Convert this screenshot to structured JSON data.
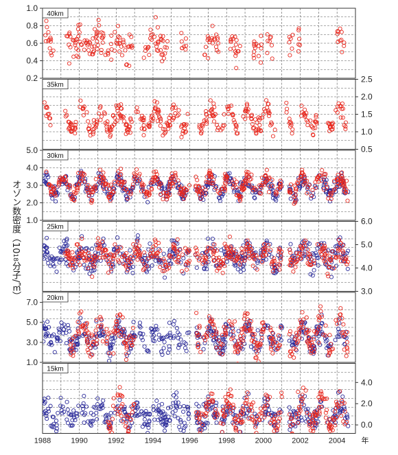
{
  "figure": {
    "ylabel_prefix": "オゾン数密度（10",
    "ylabel_exp": "18",
    "ylabel_suffix": "分子/㎥）",
    "year_unit": "年"
  },
  "chart_data": [
    {
      "type": "scatter",
      "panel_label": "40km",
      "axis_side": "left",
      "ylim": [
        0.2,
        1.0
      ],
      "yticks": [
        "0.2",
        "0.4",
        "0.6",
        "0.8",
        "1.0"
      ],
      "xlim": [
        1988,
        2005
      ],
      "xticks": [
        "1988",
        "1990",
        "1992",
        "1994",
        "1996",
        "1998",
        "2000",
        "2002",
        "2004"
      ],
      "grid": true,
      "series": [
        {
          "color": "#e8291f",
          "mean": 0.6,
          "amplitude": 0.08,
          "noise": 0.09,
          "clusters": [
            [
              1988.1,
              1988.6
            ],
            [
              1989.2,
              1991.8
            ],
            [
              1991.9,
              1992.9
            ],
            [
              1993.5,
              1994.8
            ],
            [
              1995.5,
              1995.8
            ],
            [
              1996.8,
              1997.6
            ],
            [
              1998.2,
              1998.8
            ],
            [
              1999.4,
              1999.9
            ],
            [
              2000.2,
              2000.5
            ],
            [
              2001.4,
              2001.6
            ],
            [
              2001.8,
              2002.0
            ],
            [
              2004.0,
              2004.4
            ]
          ]
        }
      ]
    },
    {
      "type": "scatter",
      "panel_label": "35km",
      "axis_side": "right",
      "ylim": [
        0.5,
        2.5
      ],
      "yticks": [
        "0.5",
        "1.0",
        "1.5",
        "2.0",
        "2.5"
      ],
      "xlim": [
        1988,
        2005
      ],
      "xticks": [
        "1988",
        "1990",
        "1992",
        "1994",
        "1996",
        "1998",
        "2000",
        "2002",
        "2004"
      ],
      "grid": true,
      "series": [
        {
          "color": "#e8291f",
          "mean": 1.35,
          "amplitude": 0.3,
          "noise": 0.12,
          "clusters": [
            [
              1988.1,
              1988.5
            ],
            [
              1989.1,
              1992.9
            ],
            [
              1993.0,
              1995.9
            ],
            [
              1996.5,
              1997.9
            ],
            [
              1998.0,
              1998.6
            ],
            [
              1998.9,
              2000.7
            ],
            [
              2001.2,
              2001.6
            ],
            [
              2002.0,
              2002.9
            ],
            [
              2003.5,
              2004.5
            ]
          ]
        }
      ]
    },
    {
      "type": "scatter",
      "panel_label": "30km",
      "axis_side": "left",
      "ylim": [
        1.0,
        5.0
      ],
      "yticks": [
        "1.0",
        "2.0",
        "3.0",
        "4.0",
        "5.0"
      ],
      "xlim": [
        1988,
        2005
      ],
      "xticks": [
        "1988",
        "1990",
        "1992",
        "1994",
        "1996",
        "1998",
        "2000",
        "2002",
        "2004"
      ],
      "grid": true,
      "series": [
        {
          "color": "#2a2a9a",
          "mean": 2.9,
          "amplitude": 0.45,
          "noise": 0.22,
          "clusters": [
            [
              1988.0,
              1996.0
            ],
            [
              1996.3,
              2001.0
            ],
            [
              2001.4,
              2004.6
            ]
          ]
        },
        {
          "color": "#e8291f",
          "mean": 3.0,
          "amplitude": 0.5,
          "noise": 0.25,
          "clusters": [
            [
              1988.2,
              1996.0
            ],
            [
              1996.3,
              2001.0
            ],
            [
              2001.4,
              2004.6
            ]
          ]
        }
      ]
    },
    {
      "type": "scatter",
      "panel_label": "25km",
      "axis_side": "right",
      "ylim": [
        3.0,
        6.0
      ],
      "yticks": [
        "3.0",
        "4.0",
        "5.0",
        "6.0"
      ],
      "xlim": [
        1988,
        2005
      ],
      "xticks": [
        "1988",
        "1990",
        "1992",
        "1994",
        "1996",
        "1998",
        "2000",
        "2002",
        "2004"
      ],
      "grid": true,
      "series": [
        {
          "color": "#2a2a9a",
          "mean": 4.5,
          "amplitude": 0.3,
          "noise": 0.28,
          "clusters": [
            [
              1988.0,
              1996.0
            ],
            [
              1996.3,
              2001.0
            ],
            [
              2001.4,
              2004.6
            ]
          ]
        },
        {
          "color": "#e8291f",
          "mean": 4.5,
          "amplitude": 0.3,
          "noise": 0.25,
          "clusters": [
            [
              1989.2,
              1996.0
            ],
            [
              1996.3,
              2001.0
            ],
            [
              2001.4,
              2004.6
            ]
          ]
        }
      ]
    },
    {
      "type": "scatter",
      "panel_label": "20km",
      "axis_side": "left",
      "ylim": [
        1.0,
        8.0
      ],
      "yticks": [
        "1.0",
        "3.0",
        "5.0",
        "7.0"
      ],
      "xlim": [
        1988,
        2005
      ],
      "xticks": [
        "1988",
        "1990",
        "1992",
        "1994",
        "1996",
        "1998",
        "2000",
        "2002",
        "2004"
      ],
      "grid": true,
      "series": [
        {
          "color": "#2a2a9a",
          "mean": 3.5,
          "amplitude": 0.9,
          "noise": 0.6,
          "clusters": [
            [
              1988.0,
              1996.0
            ],
            [
              1996.3,
              2001.0
            ],
            [
              2001.4,
              2004.6
            ]
          ]
        },
        {
          "color": "#e8291f",
          "mean": 3.8,
          "amplitude": 1.3,
          "noise": 0.7,
          "clusters": [
            [
              1989.5,
              1993.0
            ],
            [
              1996.3,
              2001.0
            ],
            [
              2001.4,
              2004.6
            ]
          ]
        }
      ]
    },
    {
      "type": "scatter",
      "panel_label": "15km",
      "axis_side": "right",
      "ylim": [
        -0.8,
        5.8
      ],
      "yticks": [
        "0.0",
        "2.0",
        "4.0"
      ],
      "xlim": [
        1988,
        2005
      ],
      "xticks": [
        "1988",
        "1990",
        "1992",
        "1994",
        "1996",
        "1998",
        "2000",
        "2002",
        "2004"
      ],
      "grid": true,
      "series": [
        {
          "color": "#2a2a9a",
          "mean": 1.0,
          "amplitude": 0.7,
          "noise": 0.6,
          "clusters": [
            [
              1988.0,
              1996.0
            ],
            [
              1996.3,
              2001.0
            ],
            [
              2001.4,
              2004.6
            ]
          ]
        },
        {
          "color": "#e8291f",
          "mean": 1.2,
          "amplitude": 1.2,
          "noise": 0.7,
          "clusters": [
            [
              1991.5,
              1993.0
            ],
            [
              1996.3,
              2001.0
            ],
            [
              2001.4,
              2004.6
            ]
          ]
        }
      ]
    }
  ]
}
